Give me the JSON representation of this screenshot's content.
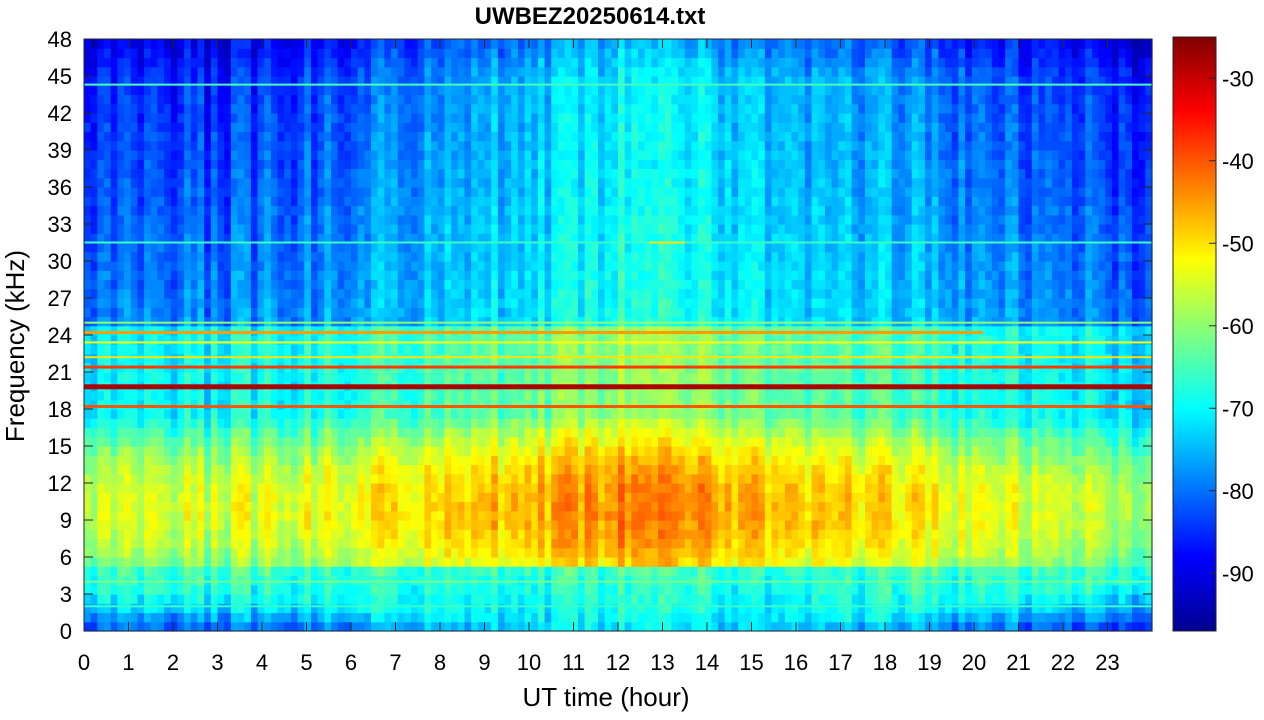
{
  "chart_data": {
    "type": "heatmap",
    "title": "UWBEZ20250614.txt",
    "xlabel": "UT time (hour)",
    "ylabel": "Frequency (kHz)",
    "xlim": [
      0,
      24
    ],
    "ylim": [
      0,
      48
    ],
    "xticks": [
      0,
      1,
      2,
      3,
      4,
      5,
      6,
      7,
      8,
      9,
      10,
      11,
      12,
      13,
      14,
      15,
      16,
      17,
      18,
      19,
      20,
      21,
      22,
      23
    ],
    "yticks": [
      0,
      3,
      6,
      9,
      12,
      15,
      18,
      21,
      24,
      27,
      30,
      33,
      36,
      39,
      42,
      45,
      48
    ],
    "colorbar": {
      "colormap": "jet",
      "clim": [
        -97,
        -25
      ],
      "ticks": [
        -90,
        -80,
        -70,
        -60,
        -50,
        -40,
        -30
      ]
    },
    "background": {
      "time_hours": [
        0,
        3,
        6,
        9,
        12,
        15,
        18,
        21,
        24
      ],
      "upper_band_dB_at_45kHz": [
        -86,
        -86,
        -82,
        -76,
        -72,
        -73,
        -78,
        -84,
        -86
      ],
      "mid_band_dB_at_30kHz": [
        -80,
        -79,
        -76,
        -72,
        -69,
        -70,
        -74,
        -78,
        -80
      ],
      "lower_band_peak_dB_at_10kHz": [
        -56,
        -55,
        -52,
        -47,
        -44,
        -45,
        -50,
        -55,
        -58
      ],
      "lower_band_peak_kHz": 10
    },
    "emission_lines": [
      {
        "freq_kHz": 19.8,
        "level_dB": -28,
        "t_start": 0,
        "t_end": 24
      },
      {
        "freq_kHz": 18.2,
        "level_dB": -40,
        "t_start": 0,
        "t_end": 24
      },
      {
        "freq_kHz": 21.4,
        "level_dB": -38,
        "t_start": 0,
        "t_end": 24
      },
      {
        "freq_kHz": 22.2,
        "level_dB": -50,
        "t_start": 0,
        "t_end": 24
      },
      {
        "freq_kHz": 23.4,
        "level_dB": -52,
        "t_start": 0,
        "t_end": 24
      },
      {
        "freq_kHz": 24.2,
        "level_dB": -45,
        "t_start": 0,
        "t_end": 20.2
      },
      {
        "freq_kHz": 25.0,
        "level_dB": -60,
        "t_start": 0,
        "t_end": 24
      },
      {
        "freq_kHz": 44.3,
        "level_dB": -65,
        "t_start": 0,
        "t_end": 24
      },
      {
        "freq_kHz": 31.5,
        "level_dB": -66,
        "t_start": 0,
        "t_end": 24
      },
      {
        "freq_kHz": 4.0,
        "level_dB": -62,
        "t_start": 0,
        "t_end": 24
      },
      {
        "freq_kHz": 2.0,
        "level_dB": -66,
        "t_start": 0,
        "t_end": 24
      },
      {
        "freq_kHz": 31.5,
        "level_dB": -50,
        "t_start": 12.7,
        "t_end": 13.5
      }
    ]
  }
}
